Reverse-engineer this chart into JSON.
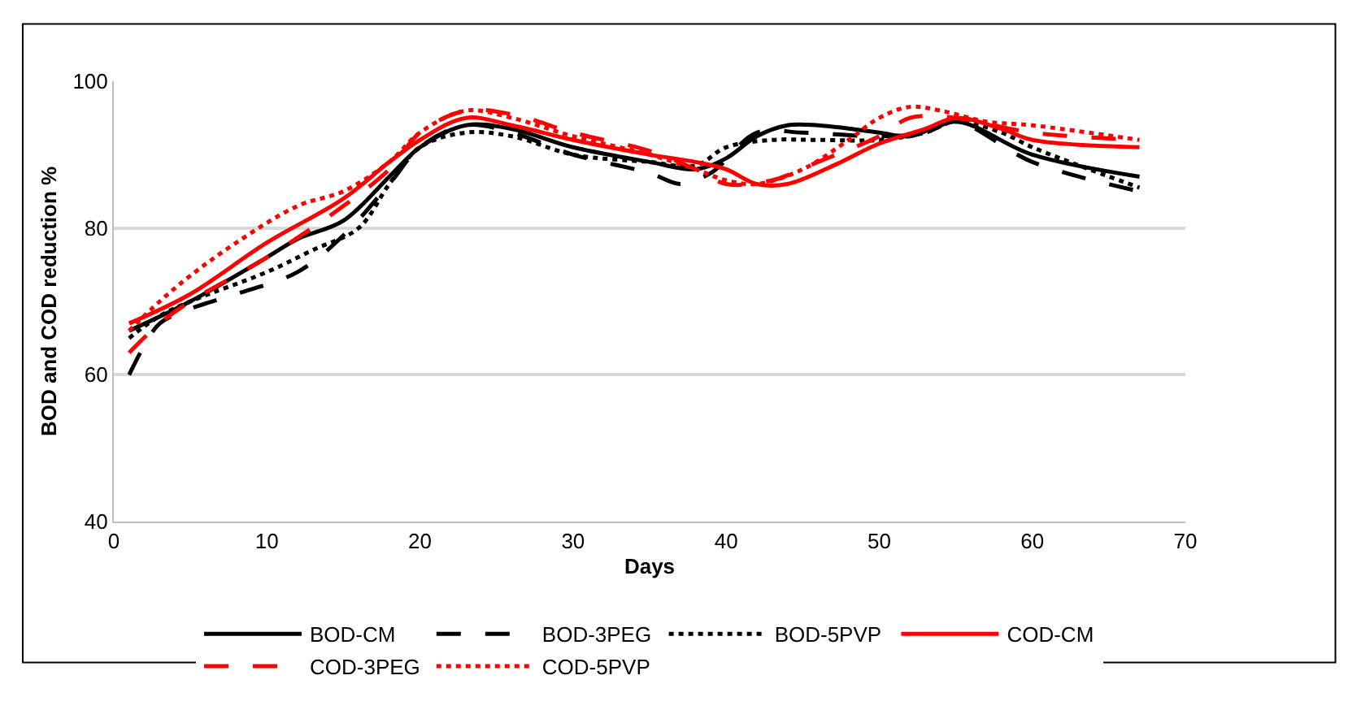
{
  "chart_data": {
    "type": "line",
    "xlabel": "Days",
    "ylabel": "BOD and COD reduction %",
    "xlim": [
      0,
      70
    ],
    "xticks": [
      0,
      10,
      20,
      30,
      40,
      50,
      60,
      70
    ],
    "ylim": [
      40,
      100
    ],
    "yticks": [
      40,
      60,
      80,
      100
    ],
    "grid": "y",
    "legend": "bottom",
    "marker": "none",
    "series": [
      {
        "name": "BOD-CM",
        "color": "#000000",
        "line_style": "solid",
        "x": [
          1,
          5,
          10,
          12,
          15,
          18,
          20,
          23,
          26,
          30,
          35,
          38,
          40,
          42,
          44,
          46,
          50,
          52,
          55,
          60,
          67
        ],
        "values": [
          66,
          70,
          76,
          78.5,
          81,
          87,
          91,
          94,
          93.5,
          91,
          89,
          88,
          89.5,
          92.5,
          94,
          94,
          93,
          92.5,
          94.5,
          90,
          87
        ]
      },
      {
        "name": "BOD-3PEG",
        "color": "#000000",
        "line_style": "dashed",
        "x": [
          1,
          2,
          3,
          5,
          8,
          12,
          15,
          18,
          20,
          23,
          26,
          30,
          35,
          37,
          39,
          42,
          45,
          50,
          53,
          55,
          60,
          67
        ],
        "values": [
          60,
          64,
          67,
          69,
          71,
          74,
          79,
          86,
          91,
          94,
          93,
          90,
          87.5,
          86,
          87.5,
          93,
          93,
          92.5,
          93,
          94.5,
          89,
          85
        ]
      },
      {
        "name": "BOD-5PVP",
        "color": "#000000",
        "line_style": "dotted",
        "x": [
          1,
          3,
          5,
          10,
          13,
          16,
          18,
          20,
          23,
          26,
          30,
          35,
          38,
          40,
          43,
          46,
          50,
          53,
          55,
          58,
          60,
          67
        ],
        "values": [
          65,
          68,
          70,
          74,
          77,
          80,
          86,
          91,
          93,
          92.5,
          90,
          89,
          88.5,
          91,
          92,
          92,
          92,
          93,
          94.5,
          93,
          91,
          85.5
        ]
      },
      {
        "name": "COD-CM",
        "color": "#ff0000",
        "line_style": "solid",
        "x": [
          1,
          5,
          10,
          15,
          18,
          20,
          23,
          26,
          30,
          35,
          38,
          40,
          42,
          44,
          47,
          50,
          53,
          55,
          58,
          60,
          67
        ],
        "values": [
          67,
          71,
          78,
          84,
          89,
          92,
          95,
          94,
          92,
          90,
          89,
          88,
          86,
          86,
          88.5,
          91.5,
          93.5,
          95,
          93.5,
          92,
          91
        ]
      },
      {
        "name": "COD-3PEG",
        "color": "#ff0000",
        "line_style": "dashed",
        "x": [
          1,
          3,
          5,
          10,
          15,
          18,
          20,
          23,
          26,
          30,
          35,
          38,
          40,
          43,
          46,
          50,
          52,
          55,
          60,
          67
        ],
        "values": [
          63,
          67,
          70,
          76,
          83,
          88,
          93,
          96,
          95.5,
          93,
          90.5,
          88,
          86,
          86.5,
          89,
          92.5,
          95,
          95,
          93,
          92
        ]
      },
      {
        "name": "COD-5PVP",
        "color": "#ff0000",
        "line_style": "dotted",
        "x": [
          1,
          3,
          5,
          8,
          12,
          15,
          18,
          20,
          23,
          26,
          30,
          35,
          38,
          40,
          42,
          45,
          48,
          50,
          52,
          54,
          57,
          60,
          67
        ],
        "values": [
          66,
          70,
          73.5,
          78,
          83,
          85,
          89,
          93,
          96,
          95,
          92.5,
          90,
          88,
          86.5,
          86,
          88,
          92,
          95,
          96.5,
          96,
          94.5,
          94,
          92
        ]
      }
    ]
  }
}
